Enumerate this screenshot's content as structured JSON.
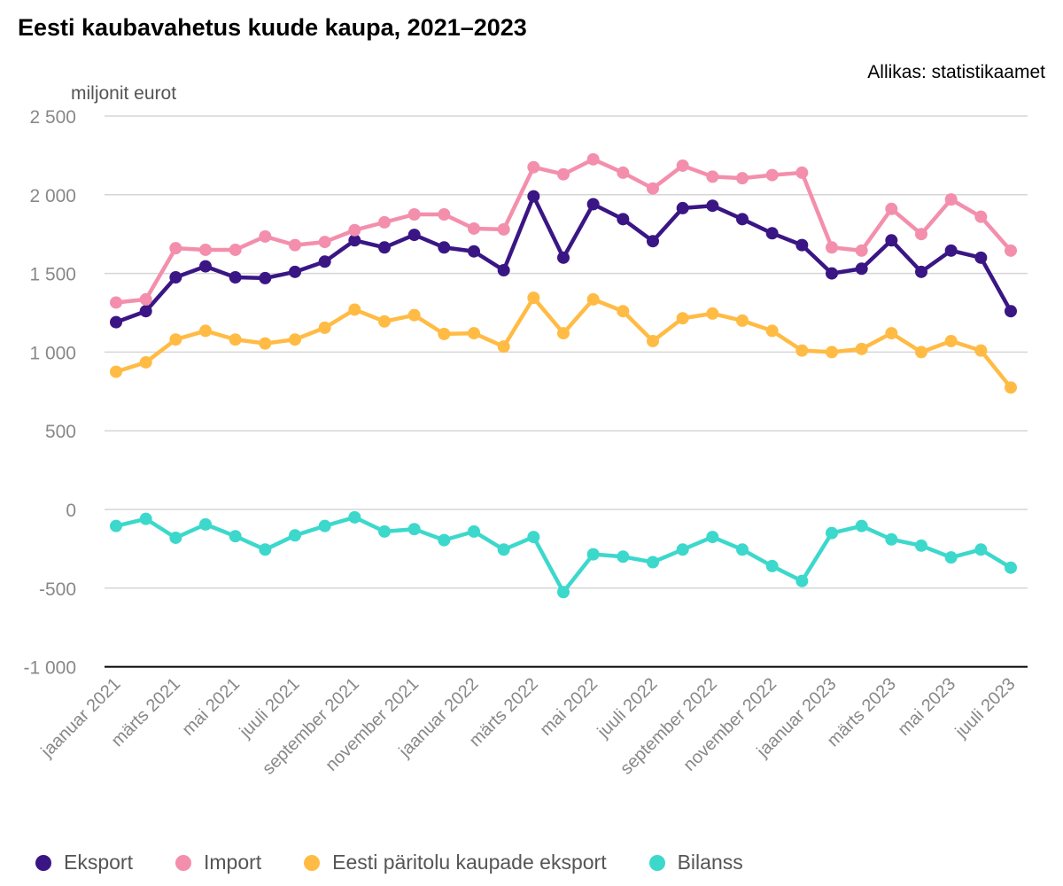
{
  "chart_data": {
    "type": "line",
    "title": "Eesti kaubavahetus kuude kaupa, 2021–2023",
    "source": "Allikas: statistikaamet",
    "ylabel": "miljonit eurot",
    "ylim": [
      -1000,
      2500
    ],
    "yticks": [
      2500,
      2000,
      1500,
      1000,
      500,
      0,
      -500,
      -1000
    ],
    "ytick_labels": [
      "2 500",
      "2 000",
      "1 500",
      "1 000",
      "500",
      "0",
      "-500",
      "-1 000"
    ],
    "grid": true,
    "legend_placement": "bottom",
    "x_tick_labels": [
      "jaanuar 2021",
      "märts 2021",
      "mai 2021",
      "juuli 2021",
      "september 2021",
      "november 2021",
      "jaanuar 2022",
      "märts 2022",
      "mai 2022",
      "juuli 2022",
      "september 2022",
      "november 2022",
      "jaanuar 2023",
      "märts 2023",
      "mai 2023",
      "juuli 2023"
    ],
    "x": [
      "2021-01",
      "2021-02",
      "2021-03",
      "2021-04",
      "2021-05",
      "2021-06",
      "2021-07",
      "2021-08",
      "2021-09",
      "2021-10",
      "2021-11",
      "2021-12",
      "2022-01",
      "2022-02",
      "2022-03",
      "2022-04",
      "2022-05",
      "2022-06",
      "2022-07",
      "2022-08",
      "2022-09",
      "2022-10",
      "2022-11",
      "2022-12",
      "2023-01",
      "2023-02",
      "2023-03",
      "2023-04",
      "2023-05",
      "2023-06",
      "2023-07"
    ],
    "series": [
      {
        "name": "Eksport",
        "color": "#3a1685",
        "values": [
          1190,
          1260,
          1475,
          1545,
          1475,
          1470,
          1510,
          1575,
          1710,
          1665,
          1745,
          1665,
          1640,
          1520,
          1990,
          1600,
          1940,
          1845,
          1705,
          1915,
          1930,
          1845,
          1755,
          1680,
          1500,
          1530,
          1710,
          1510,
          1645,
          1600,
          1260
        ]
      },
      {
        "name": "Import",
        "color": "#f38fac",
        "values": [
          1315,
          1335,
          1660,
          1650,
          1650,
          1735,
          1680,
          1700,
          1775,
          1825,
          1875,
          1875,
          1785,
          1780,
          2175,
          2130,
          2225,
          2140,
          2040,
          2185,
          2115,
          2105,
          2125,
          2140,
          1665,
          1645,
          1910,
          1750,
          1970,
          1860,
          1645
        ]
      },
      {
        "name": "Eesti päritolu kaupade eksport",
        "color": "#ffbb44",
        "values": [
          875,
          935,
          1080,
          1135,
          1080,
          1055,
          1080,
          1155,
          1270,
          1195,
          1235,
          1115,
          1120,
          1035,
          1345,
          1120,
          1335,
          1260,
          1070,
          1215,
          1245,
          1200,
          1135,
          1010,
          1000,
          1020,
          1120,
          1000,
          1070,
          1010,
          775
        ]
      },
      {
        "name": "Bilanss",
        "color": "#3cd8cc",
        "values": [
          -105,
          -60,
          -180,
          -95,
          -170,
          -255,
          -165,
          -105,
          -50,
          -140,
          -125,
          -195,
          -140,
          -255,
          -175,
          -525,
          -285,
          -300,
          -335,
          -255,
          -175,
          -255,
          -360,
          -455,
          -150,
          -105,
          -190,
          -230,
          -305,
          -255,
          -370
        ]
      }
    ]
  }
}
